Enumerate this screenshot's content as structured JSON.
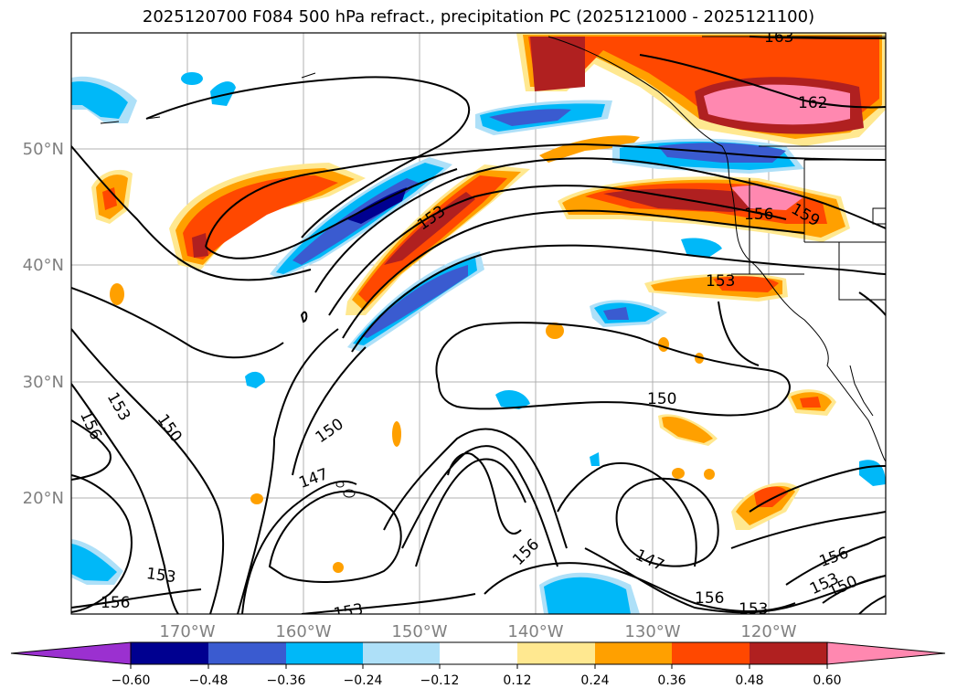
{
  "title": "2025120700 F084 500 hPa refract., precipitation PC (2025121000 - 2025121100)",
  "latitude_labels": [
    "50°N",
    "40°N",
    "30°N",
    "20°N"
  ],
  "longitude_labels": [
    "170°W",
    "160°W",
    "150°W",
    "140°W",
    "130°W",
    "120°W"
  ],
  "contour_labels": [
    "163",
    "162",
    "153",
    "156",
    "159",
    "153",
    "150",
    "156",
    "153",
    "150",
    "150",
    "147",
    "156",
    "147",
    "156",
    "153",
    "153",
    "156",
    "153",
    "150",
    "153",
    "156"
  ],
  "colorbar": {
    "ticks": [
      "−0.60",
      "−0.48",
      "−0.36",
      "−0.24",
      "−0.12",
      "0.12",
      "0.24",
      "0.36",
      "0.48",
      "0.60"
    ],
    "colors": [
      "#9b30d0",
      "#000090",
      "#3a5bd0",
      "#00b8f8",
      "#aee0f8",
      "#ffffff",
      "#ffe890",
      "#ffa000",
      "#ff4800",
      "#b02020",
      "#ff88b0"
    ]
  },
  "shading_colors": {
    "pink": "#ff88b0",
    "darkred": "#b02020",
    "red": "#ff4800",
    "orange": "#ffa000",
    "yellow": "#ffe890",
    "lightblue": "#aee0f8",
    "cyan": "#00b8f8",
    "blue": "#3a5bd0",
    "navy": "#000090"
  }
}
